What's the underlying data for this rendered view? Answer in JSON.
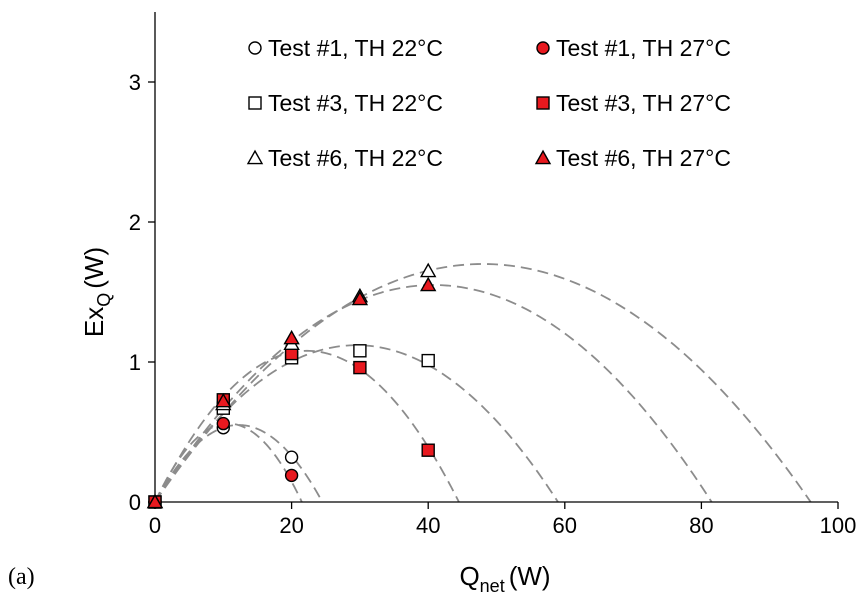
{
  "chart_data": {
    "type": "scatter",
    "panel_label": "(a)",
    "xlabel_main": "Q",
    "xlabel_sub": "net",
    "xlabel_unit": "(W)",
    "ylabel_main": "Ex",
    "ylabel_sub": "Q",
    "ylabel_unit": "(W)",
    "xlim": [
      0,
      100
    ],
    "ylim": [
      0,
      3.5
    ],
    "xticks": [
      0,
      20,
      40,
      60,
      80,
      100
    ],
    "xtick_labels": [
      "0",
      "20",
      "40",
      "60",
      "80",
      "100"
    ],
    "yticks": [
      0,
      1,
      2,
      3
    ],
    "ytick_labels": [
      "0",
      "1",
      "2",
      "3"
    ],
    "grid": false,
    "legend_position": "top",
    "series": [
      {
        "name": "Test #1, TH 22°C",
        "marker": "circle",
        "fill": "#ffffff",
        "points": [
          {
            "x": 0,
            "y": 0
          },
          {
            "x": 10,
            "y": 0.53
          },
          {
            "x": 20,
            "y": 0.32
          }
        ]
      },
      {
        "name": "Test #1, TH 27°C",
        "marker": "circle",
        "fill": "#e8191f",
        "points": [
          {
            "x": 0,
            "y": 0
          },
          {
            "x": 10,
            "y": 0.56
          },
          {
            "x": 20,
            "y": 0.19
          }
        ]
      },
      {
        "name": "Test #3, TH 22°C",
        "marker": "square",
        "fill": "#ffffff",
        "points": [
          {
            "x": 0,
            "y": 0
          },
          {
            "x": 10,
            "y": 0.67
          },
          {
            "x": 20,
            "y": 1.03
          },
          {
            "x": 30,
            "y": 1.08
          },
          {
            "x": 40,
            "y": 1.01
          }
        ]
      },
      {
        "name": "Test #3, TH 27°C",
        "marker": "square",
        "fill": "#e8191f",
        "points": [
          {
            "x": 0,
            "y": 0
          },
          {
            "x": 10,
            "y": 0.73
          },
          {
            "x": 20,
            "y": 1.06
          },
          {
            "x": 30,
            "y": 0.96
          },
          {
            "x": 40,
            "y": 0.37
          }
        ]
      },
      {
        "name": "Test #6, TH 22°C",
        "marker": "triangle",
        "fill": "#ffffff",
        "points": [
          {
            "x": 0,
            "y": 0
          },
          {
            "x": 10,
            "y": 0.7
          },
          {
            "x": 20,
            "y": 1.13
          },
          {
            "x": 30,
            "y": 1.47
          },
          {
            "x": 40,
            "y": 1.65
          }
        ]
      },
      {
        "name": "Test #6, TH 27°C",
        "marker": "triangle",
        "fill": "#e8191f",
        "points": [
          {
            "x": 0,
            "y": 0
          },
          {
            "x": 10,
            "y": 0.72
          },
          {
            "x": 20,
            "y": 1.17
          },
          {
            "x": 30,
            "y": 1.45
          },
          {
            "x": 40,
            "y": 1.55
          }
        ]
      }
    ],
    "fit_curves": {
      "style": "dashed",
      "color": "#8c8c8c",
      "curves": [
        {
          "x_max": 21.5,
          "x_peak": 10.5,
          "y_peak": 0.56
        },
        {
          "x_max": 24.5,
          "x_peak": 12.0,
          "y_peak": 0.55
        },
        {
          "x_max": 44.5,
          "x_peak": 21.5,
          "y_peak": 1.08
        },
        {
          "x_max": 59.0,
          "x_peak": 28.5,
          "y_peak": 1.12
        },
        {
          "x_max": 81.5,
          "x_peak": 40.0,
          "y_peak": 1.55
        },
        {
          "x_max": 96.0,
          "x_peak": 48.0,
          "y_peak": 1.7
        }
      ]
    }
  }
}
